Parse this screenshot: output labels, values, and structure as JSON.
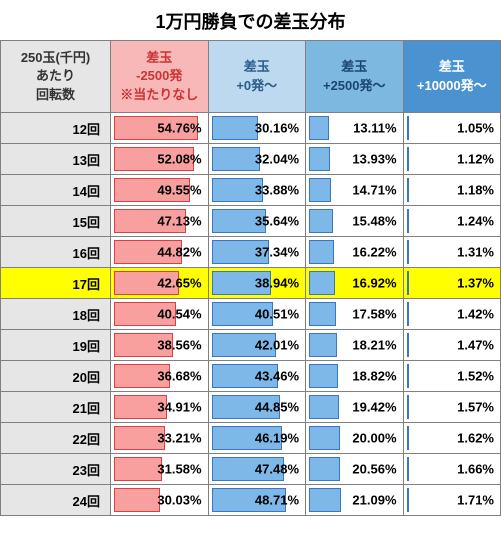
{
  "title": "1万円勝負での差玉分布",
  "header": {
    "rotations_label": "250玉(千円)\nあたり\n回転数",
    "columns": [
      {
        "label": "差玉\n-2500発\n※当たりなし",
        "bgcolor": "#f8b8b8",
        "textcolor": "#cc3333"
      },
      {
        "label": "差玉\n+0発～",
        "bgcolor": "#bcd9f0",
        "textcolor": "#2a5c8a"
      },
      {
        "label": "差玉\n+2500発～",
        "bgcolor": "#7db8e0",
        "textcolor": "#1a4570"
      },
      {
        "label": "差玉\n+10000発～",
        "bgcolor": "#4a92d0",
        "textcolor": "#ffffff"
      }
    ]
  },
  "bar_colors": {
    "red": {
      "fill": "#f8a0a0",
      "border": "#d94040"
    },
    "blue": {
      "fill": "#7db8e8",
      "border": "#3878c0"
    }
  },
  "bar_max_pct": 60,
  "highlight_rotations": 17,
  "rows": [
    {
      "rotations": 12,
      "vals": [
        54.76,
        30.16,
        13.11,
        1.05
      ]
    },
    {
      "rotations": 13,
      "vals": [
        52.08,
        32.04,
        13.93,
        1.12
      ]
    },
    {
      "rotations": 14,
      "vals": [
        49.55,
        33.88,
        14.71,
        1.18
      ]
    },
    {
      "rotations": 15,
      "vals": [
        47.13,
        35.64,
        15.48,
        1.24
      ]
    },
    {
      "rotations": 16,
      "vals": [
        44.82,
        37.34,
        16.22,
        1.31
      ]
    },
    {
      "rotations": 17,
      "vals": [
        42.65,
        38.94,
        16.92,
        1.37
      ]
    },
    {
      "rotations": 18,
      "vals": [
        40.54,
        40.51,
        17.58,
        1.42
      ]
    },
    {
      "rotations": 19,
      "vals": [
        38.56,
        42.01,
        18.21,
        1.47
      ]
    },
    {
      "rotations": 20,
      "vals": [
        36.68,
        43.46,
        18.82,
        1.52
      ]
    },
    {
      "rotations": 21,
      "vals": [
        34.91,
        44.85,
        19.42,
        1.57
      ]
    },
    {
      "rotations": 22,
      "vals": [
        33.21,
        46.19,
        20.0,
        1.62
      ]
    },
    {
      "rotations": 23,
      "vals": [
        31.58,
        47.48,
        20.56,
        1.66
      ]
    },
    {
      "rotations": 24,
      "vals": [
        30.03,
        48.71,
        21.09,
        1.71
      ]
    }
  ],
  "col_widths": [
    "22%",
    "19.5%",
    "19.5%",
    "19.5%",
    "19.5%"
  ]
}
